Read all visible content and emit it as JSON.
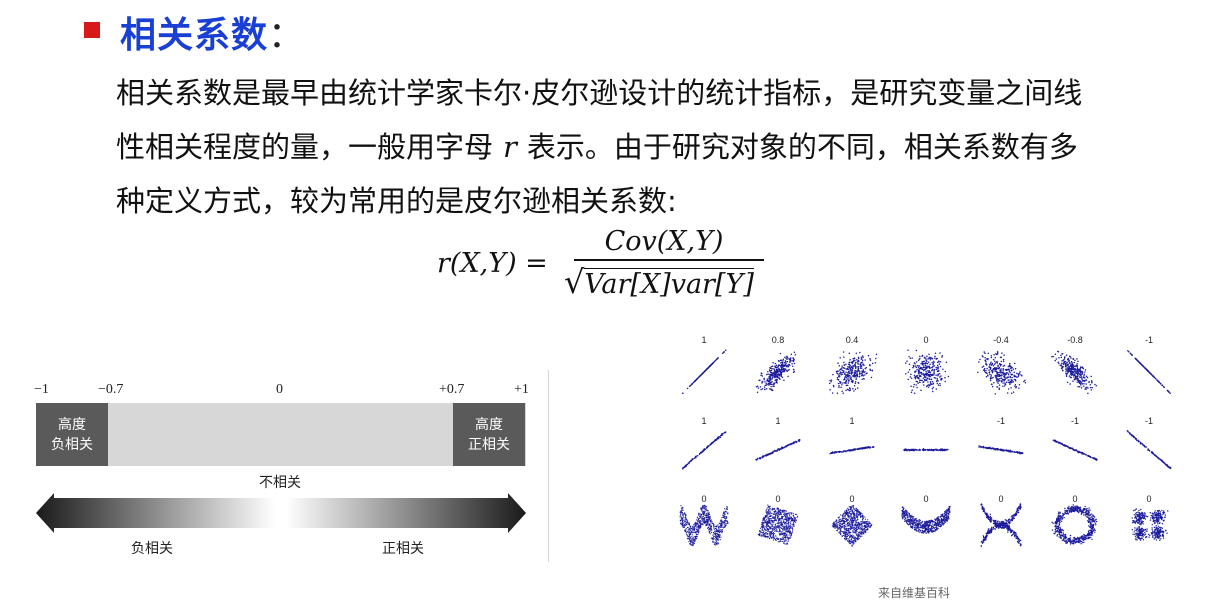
{
  "heading": {
    "title": "相关系数",
    "colon": "："
  },
  "paragraph": {
    "line1": "相关系数是最早由统计学家卡尔·皮尔逊设计的统计指标，是研究变量之间线",
    "line2_pre": "性相关程度的量，一般用字母",
    "line2_var": "r",
    "line2_post": "表示。由于研究对象的不同，相关系数有多",
    "line3": "种定义方式，较为常用的是皮尔逊相关系数:"
  },
  "formula": {
    "lhs": "r(X,Y) =",
    "numerator": "Cov(X,Y)",
    "denominator": "Var[X]var[Y]"
  },
  "scale": {
    "ticks": [
      "−1",
      "−0.7",
      "0",
      "+0.7",
      "+1"
    ],
    "strong_negative": [
      "高度",
      "负相关"
    ],
    "strong_positive": [
      "高度",
      "正相关"
    ],
    "uncorrelated": "不相关",
    "negative": "负相关",
    "positive": "正相关"
  },
  "grid": {
    "row1": [
      "1",
      "0.8",
      "0.4",
      "0",
      "-0.4",
      "-0.8",
      "-1"
    ],
    "row2": [
      "1",
      "1",
      "1",
      "",
      "-1",
      "-1",
      "-1"
    ],
    "row3": [
      "0",
      "0",
      "0",
      "0",
      "0",
      "0",
      "0"
    ],
    "dot_color": "#1c1c9c"
  },
  "credit": "来自维基百科"
}
